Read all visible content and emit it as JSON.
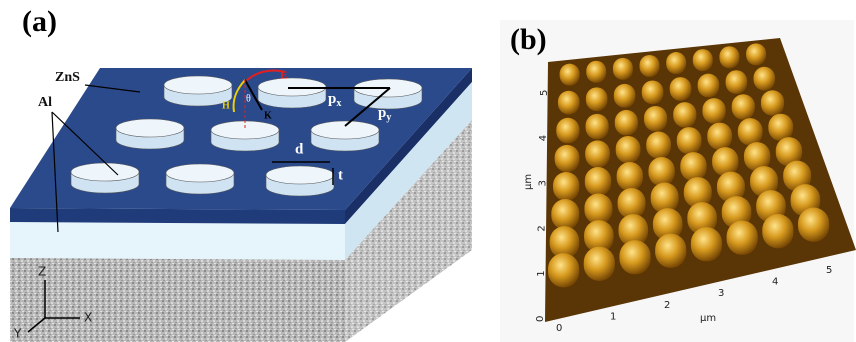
{
  "panel_a": {
    "label": "(a)",
    "top_layer": "ZnS",
    "metal": "Al",
    "period_x": {
      "base": "p",
      "sub": "x"
    },
    "period_y": {
      "base": "p",
      "sub": "y"
    },
    "diameter": "d",
    "thickness": "t",
    "e_field": "E",
    "h_field": "H",
    "k_vector": "K",
    "angle": "θ",
    "axes": {
      "z": "Z",
      "x": "X",
      "y": "Y"
    }
  },
  "panel_b": {
    "label": "(b)",
    "x_unit": "µm",
    "y_unit": "µm",
    "x_ticks": [
      "0",
      "1",
      "2",
      "3",
      "4",
      "5"
    ],
    "y_ticks": [
      "0",
      "1",
      "2",
      "3",
      "4",
      "5"
    ]
  }
}
